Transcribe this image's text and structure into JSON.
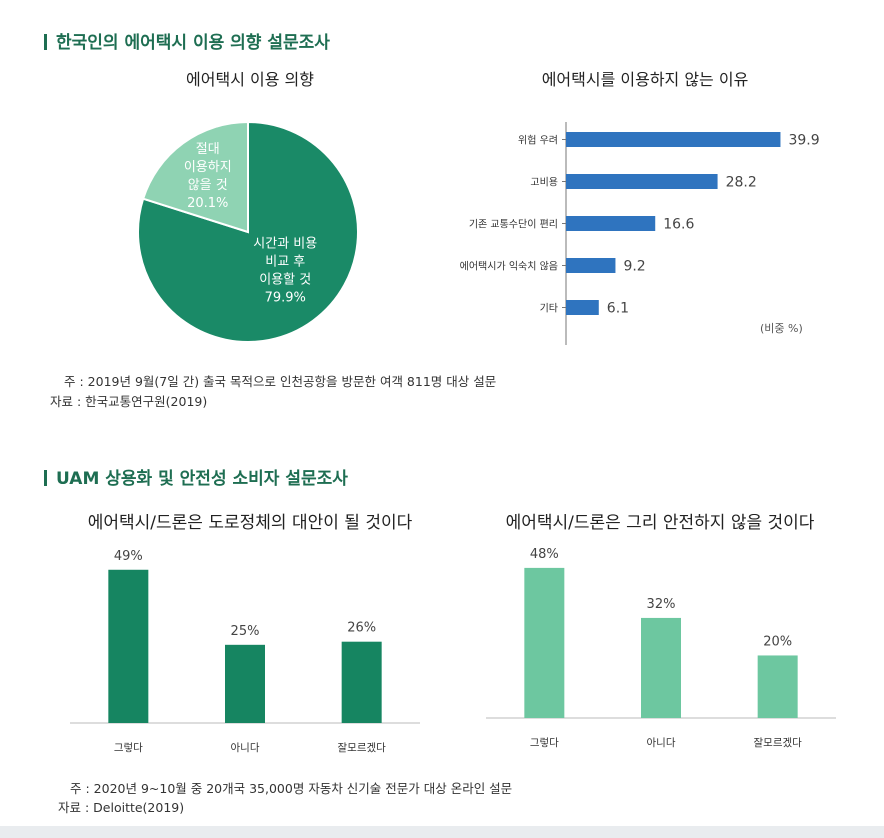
{
  "section1": {
    "title": "한국인의 에어택시 이용 의향 설문조사"
  },
  "section2": {
    "title": "UAM 상용화 및 안전성 소비자 설문조사"
  },
  "chart_data": [
    {
      "type": "pie",
      "title": "에어택시 이용 의향",
      "slices": [
        {
          "label": [
            "시간과 비용",
            "비교 후",
            "이용할 것"
          ],
          "value": 79.9,
          "value_label": "79.9%",
          "color": "#1a8a67"
        },
        {
          "label": [
            "절대",
            "이용하지",
            "않을 것"
          ],
          "value": 20.1,
          "value_label": "20.1%",
          "color": "#8fd3b3"
        }
      ]
    },
    {
      "type": "bar",
      "orientation": "horizontal",
      "title": "에어택시를 이용하지 않는 이유",
      "categories": [
        "위험 우려",
        "고비용",
        "기존 교통수단이 편리",
        "에어택시가 익숙치 않음",
        "기타"
      ],
      "values": [
        39.9,
        28.2,
        16.6,
        9.2,
        6.1
      ],
      "value_labels": [
        "39.9",
        "28.2",
        "16.6",
        "9.2",
        "6.1"
      ],
      "unit_note": "(비중 %)",
      "color": "#2f74bf",
      "xlim": [
        0,
        40
      ]
    },
    {
      "type": "bar",
      "title": "에어택시/드론은 도로정체의 대안이 될 것이다",
      "categories": [
        "그렇다",
        "아니다",
        "잘모르겠다"
      ],
      "values": [
        49,
        25,
        26
      ],
      "value_labels": [
        "49%",
        "25%",
        "26%"
      ],
      "color": "#168561",
      "ylim": [
        0,
        55
      ]
    },
    {
      "type": "bar",
      "title": "에어택시/드론은 그리 안전하지 않을 것이다",
      "categories": [
        "그렇다",
        "아니다",
        "잘모르겠다"
      ],
      "values": [
        48,
        32,
        20
      ],
      "value_labels": [
        "48%",
        "32%",
        "20%"
      ],
      "color": "#6dc7a0",
      "ylim": [
        0,
        55
      ]
    }
  ],
  "notes1": {
    "note": "주 : 2019년 9월(7일 간) 출국 목적으로 인천공항을 방문한 여객 811명 대상 설문",
    "source": "자료 : 한국교통연구원(2019)"
  },
  "notes2": {
    "note": "주 : 2020년 9~10월 중 20개국 35,000명 자동차 신기술 전문가 대상 온라인 설문",
    "source": "자료 : Deloitte(2019)"
  }
}
